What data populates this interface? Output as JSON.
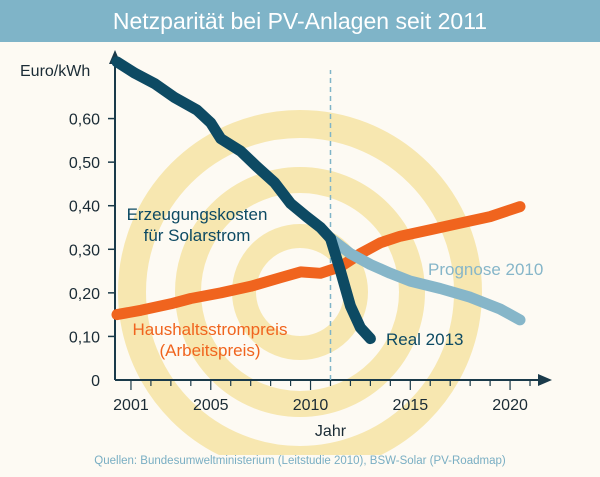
{
  "header": {
    "title": "Netzparität bei PV-Anlagen seit 2011"
  },
  "footer": {
    "source": "Quellen: Bundesumweltministerium (Leitstudie 2010), BSW-Solar (PV-Roadmap)"
  },
  "colors": {
    "title_bar": "#7fb4c8",
    "erzeugung": "#0d4a63",
    "prognose": "#86b6c9",
    "haushalt": "#f0641e",
    "axis": "#1a3a4a",
    "watermark": "#f7e7b0"
  },
  "chart_data": {
    "type": "line",
    "ylabel": "Euro/kWh",
    "xlabel": "Jahr",
    "xlim": [
      2000.2,
      2021.4
    ],
    "ylim": [
      0,
      0.7
    ],
    "x_ticks": [
      "2001",
      "2005",
      "2010",
      "2015",
      "2020"
    ],
    "y_ticks": [
      "0",
      "0,10",
      "0,20",
      "0,30",
      "0,40",
      "0,50",
      "0,60"
    ],
    "reference_line": {
      "x": 2011,
      "style": "dashed"
    },
    "series": [
      {
        "label_lines": [
          "Erzeugungskosten",
          "für Solarstrom"
        ],
        "x": [
          2000.3,
          2001.2,
          2002.2,
          2003.2,
          2004.3,
          2005.0,
          2005.5,
          2006.5,
          2007.3,
          2008.2,
          2009.0,
          2009.8,
          2010.5,
          2011.0
        ],
        "y": [
          0.73,
          0.704,
          0.68,
          0.648,
          0.62,
          0.59,
          0.554,
          0.525,
          0.49,
          0.453,
          0.405,
          0.375,
          0.35,
          0.325
        ]
      },
      {
        "label_lines": [
          "Real 2013"
        ],
        "x": [
          2011.0,
          2011.5,
          2012.0,
          2012.5,
          2013.0
        ],
        "y": [
          0.325,
          0.25,
          0.17,
          0.12,
          0.095
        ]
      },
      {
        "label_lines": [
          "Prognose 2010"
        ],
        "x": [
          2011.0,
          2012.0,
          2013.0,
          2014.0,
          2015.0,
          2016.5,
          2018.0,
          2019.5,
          2020.5
        ],
        "y": [
          0.325,
          0.29,
          0.265,
          0.245,
          0.227,
          0.21,
          0.19,
          0.163,
          0.138
        ]
      },
      {
        "label_lines": [
          "Haushaltsstrompreis",
          "(Arbeitspreis)"
        ],
        "x": [
          2000.3,
          2001.5,
          2003.0,
          2004.0,
          2005.5,
          2007.0,
          2008.5,
          2009.5,
          2010.5,
          2011.5,
          2012.5,
          2013.5,
          2014.5,
          2016.0,
          2017.5,
          2019.0,
          2020.5
        ],
        "y": [
          0.15,
          0.16,
          0.175,
          0.187,
          0.2,
          0.215,
          0.235,
          0.248,
          0.245,
          0.26,
          0.29,
          0.315,
          0.33,
          0.345,
          0.36,
          0.375,
          0.398
        ]
      }
    ]
  }
}
